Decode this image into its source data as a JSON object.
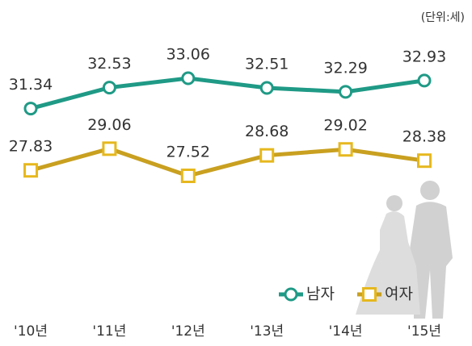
{
  "chart_data": {
    "type": "line",
    "unit": "(단위:세)",
    "categories": [
      "'10년",
      "'11년",
      "'12년",
      "'13년",
      "'14년",
      "'15년"
    ],
    "series": [
      {
        "name": "남자",
        "color": "#1f9a86",
        "marker": "circle",
        "values": [
          31.34,
          32.53,
          33.06,
          32.51,
          32.29,
          32.93
        ]
      },
      {
        "name": "여자",
        "color": "#c9a020",
        "marker": "square",
        "values": [
          27.83,
          29.06,
          27.52,
          28.68,
          29.02,
          28.38
        ]
      }
    ],
    "legend": "lower right"
  }
}
